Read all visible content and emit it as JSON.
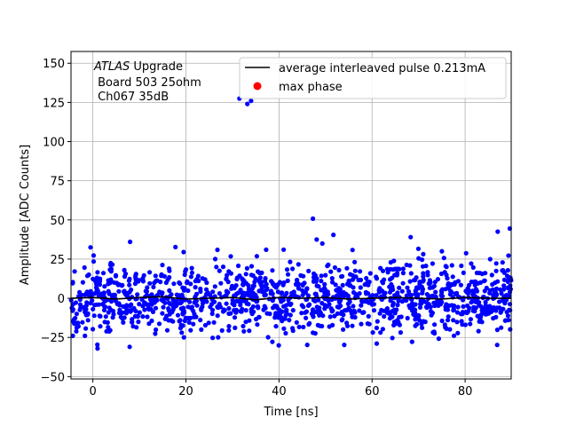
{
  "chart_data": {
    "type": "scatter",
    "xlabel": "Time [ns]",
    "ylabel": "Amplitude [ADC Counts]",
    "xlim": [
      -4.7,
      89.9
    ],
    "ylim": [
      -51.5,
      157.5
    ],
    "xticks": [
      0,
      20,
      40,
      60,
      80
    ],
    "yticks": [
      -50,
      -25,
      0,
      25,
      50,
      75,
      100,
      125,
      150
    ],
    "grid": true,
    "legend_position": "top-right",
    "annotation": {
      "italic": "ATLAS",
      "rest": " Upgrade",
      "line2": " Board 503 25ohm",
      "line3": " Ch067 35dB"
    },
    "series": [
      {
        "name": "average interleaved pulse 0.213mA",
        "kind": "line",
        "color": "#000000",
        "x": [
          -4.7,
          0,
          5,
          10,
          15,
          20,
          25,
          30,
          35,
          40,
          45,
          50,
          55,
          60,
          65,
          70,
          75,
          80,
          85,
          89.9
        ],
        "y": [
          0,
          0.5,
          -0.5,
          0.5,
          1,
          -0.5,
          0,
          0.5,
          -1,
          0.5,
          0,
          0.5,
          -0.5,
          0,
          0.5,
          0,
          -0.5,
          0.5,
          0,
          0
        ]
      },
      {
        "name": "max phase",
        "kind": "marker",
        "color": "#ff0000",
        "x": [],
        "y": []
      },
      {
        "kind": "scatter",
        "color": "#0000ff",
        "x_range": [
          -4.7,
          89.9
        ],
        "n_points": 1300,
        "noise_sigma": 11,
        "noise_mean": 0,
        "x": [
          31.5,
          33.2,
          34.0,
          47.3,
          51.7,
          48.1,
          68.3,
          75.0,
          87.0,
          89.6,
          41.0,
          19.5,
          26.3,
          -1.7,
          7.9,
          1.0,
          -4.3,
          -0.5,
          8.0
        ],
        "y": [
          127.5,
          124.0,
          126.0,
          50.8,
          40.5,
          37.5,
          39.0,
          30.0,
          42.5,
          44.5,
          31.0,
          29.5,
          25.0,
          -24.0,
          -31.0,
          -32.0,
          -24.0,
          32.5,
          36.0
        ]
      }
    ]
  }
}
